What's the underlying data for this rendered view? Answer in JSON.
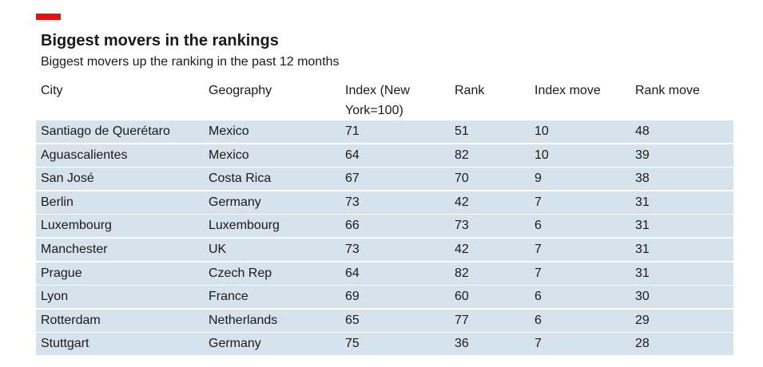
{
  "colors": {
    "accent": "#e3120b",
    "row_background": "#d7e3ec",
    "text": "#1a1a1a"
  },
  "title": "Biggest movers in the rankings",
  "subtitle": "Biggest movers up the ranking in the past 12 months",
  "table": {
    "headers": [
      "City",
      "Geography",
      "Index (New York=100)",
      "Rank",
      "Index move",
      "Rank move"
    ],
    "rows": [
      [
        "Santiago de Querétaro",
        "Mexico",
        "71",
        "51",
        "10",
        "48"
      ],
      [
        "Aguascalientes",
        "Mexico",
        "64",
        "82",
        "10",
        "39"
      ],
      [
        "San José",
        "Costa Rica",
        "67",
        "70",
        "9",
        "38"
      ],
      [
        "Berlin",
        "Germany",
        "73",
        "42",
        "7",
        "31"
      ],
      [
        "Luxembourg",
        "Luxembourg",
        "66",
        "73",
        "6",
        "31"
      ],
      [
        "Manchester",
        "UK",
        "73",
        "42",
        "7",
        "31"
      ],
      [
        "Prague",
        "Czech Rep",
        "64",
        "82",
        "7",
        "31"
      ],
      [
        "Lyon",
        "France",
        "69",
        "60",
        "6",
        "30"
      ],
      [
        "Rotterdam",
        "Netherlands",
        "65",
        "77",
        "6",
        "29"
      ],
      [
        "Stuttgart",
        "Germany",
        "75",
        "36",
        "7",
        "28"
      ]
    ]
  }
}
